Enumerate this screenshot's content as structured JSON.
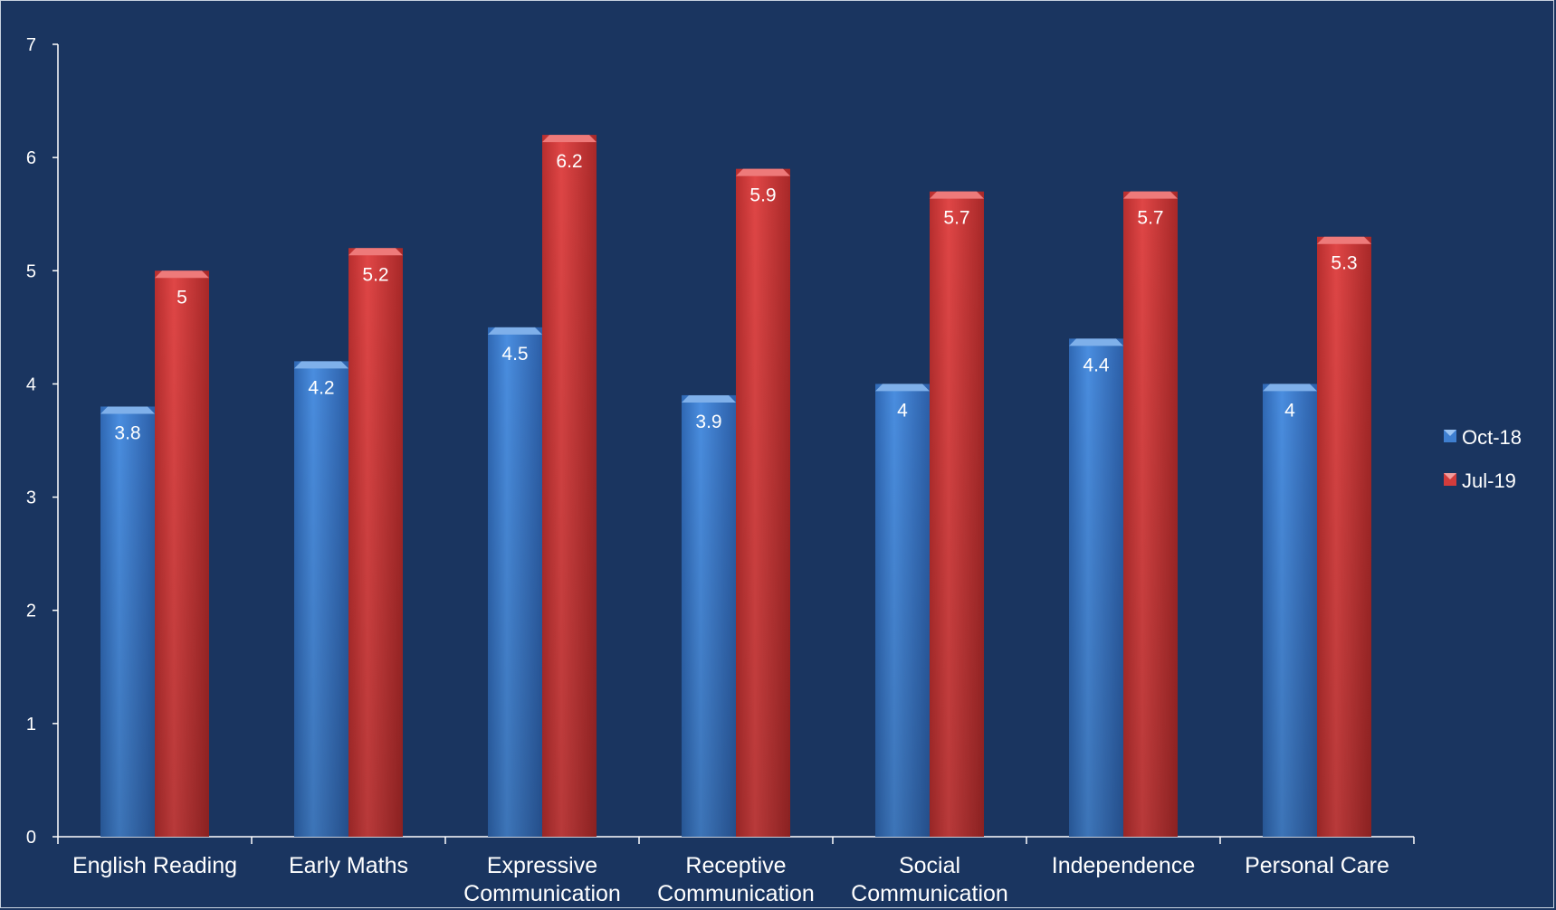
{
  "chart_data": {
    "type": "bar",
    "categories": [
      [
        "English Reading"
      ],
      [
        "Early Maths"
      ],
      [
        "Expressive",
        "Communication"
      ],
      [
        "Receptive",
        "Communication"
      ],
      [
        "Social",
        "Communication"
      ],
      [
        "Independence"
      ],
      [
        "Personal Care"
      ]
    ],
    "series": [
      {
        "name": "Oct-18",
        "color": "#3f7fd0",
        "values": [
          3.8,
          4.2,
          4.5,
          3.9,
          4,
          4.4,
          4
        ]
      },
      {
        "name": "Jul-19",
        "color": "#d33c3c",
        "values": [
          5,
          5.2,
          6.2,
          5.9,
          5.7,
          5.7,
          5.3
        ]
      }
    ],
    "ylim": [
      0,
      7
    ],
    "yticks": [
      0,
      1,
      2,
      3,
      4,
      5,
      6,
      7
    ],
    "legend": "right",
    "grid": false,
    "background": "#1a3560"
  }
}
